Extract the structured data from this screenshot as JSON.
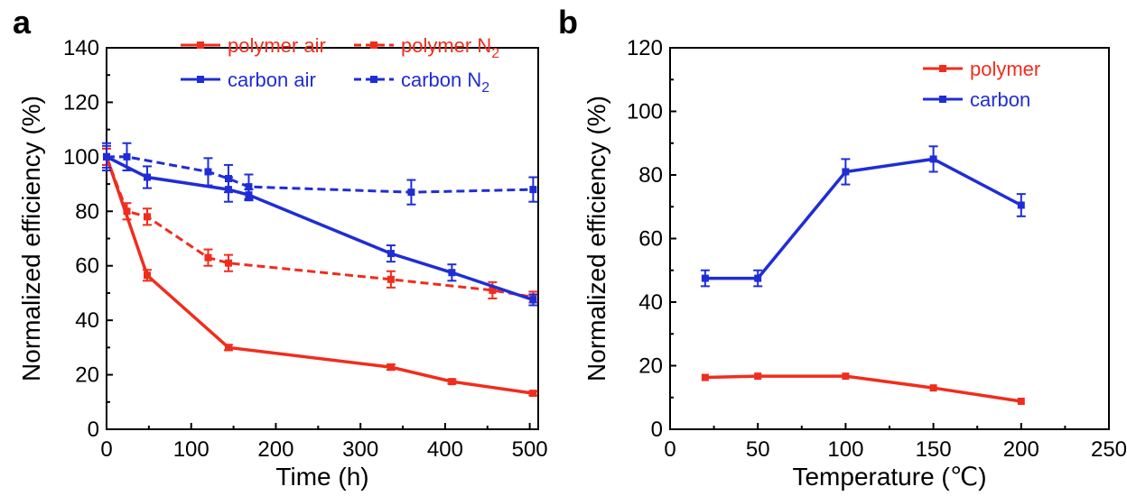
{
  "colors": {
    "polymer": "#f02d1d",
    "carbon": "#1f2dd6",
    "axis": "#000000"
  },
  "chart_data": [
    {
      "panel": "a",
      "type": "line",
      "xlabel": "Time (h)",
      "ylabel": "Normalized efficiency (%)",
      "xlim": [
        0,
        510
      ],
      "ylim": [
        0,
        140
      ],
      "xticks": [
        "0",
        "100",
        "200",
        "300",
        "400",
        "500"
      ],
      "yticks": [
        "0",
        "20",
        "40",
        "60",
        "80",
        "100",
        "120",
        "140"
      ],
      "legend_position": "top-right",
      "series": [
        {
          "name": "polymer air",
          "color_key": "polymer",
          "dashed": false,
          "points": [
            {
              "x": 0,
              "y": 100,
              "err": 3
            },
            {
              "x": 48,
              "y": 56.5,
              "err": 2
            },
            {
              "x": 144,
              "y": 30,
              "err": 1
            },
            {
              "x": 336,
              "y": 22.8,
              "err": 1
            },
            {
              "x": 408,
              "y": 17.5,
              "err": 0.8
            },
            {
              "x": 504,
              "y": 13.2,
              "err": 0.8
            }
          ]
        },
        {
          "name": "polymer N",
          "subscript": "2",
          "color_key": "polymer",
          "dashed": true,
          "points": [
            {
              "x": 0,
              "y": 100,
              "err": 3
            },
            {
              "x": 24,
              "y": 80,
              "err": 3
            },
            {
              "x": 48,
              "y": 78,
              "err": 3
            },
            {
              "x": 120,
              "y": 63,
              "err": 3
            },
            {
              "x": 144,
              "y": 61,
              "err": 3
            },
            {
              "x": 336,
              "y": 55,
              "err": 3
            },
            {
              "x": 456,
              "y": 51,
              "err": 3
            },
            {
              "x": 504,
              "y": 48.5,
              "err": 2
            }
          ]
        },
        {
          "name": "carbon air",
          "color_key": "carbon",
          "dashed": false,
          "points": [
            {
              "x": 0,
              "y": 100,
              "err": 4
            },
            {
              "x": 48,
              "y": 92.5,
              "err": 4
            },
            {
              "x": 144,
              "y": 88,
              "err": 4.5
            },
            {
              "x": 168,
              "y": 86,
              "err": 2
            },
            {
              "x": 336,
              "y": 64.5,
              "err": 3
            },
            {
              "x": 408,
              "y": 57.5,
              "err": 3
            },
            {
              "x": 504,
              "y": 47.5,
              "err": 2
            }
          ]
        },
        {
          "name": "carbon N",
          "subscript": "2",
          "color_key": "carbon",
          "dashed": true,
          "points": [
            {
              "x": 0,
              "y": 100,
              "err": 5
            },
            {
              "x": 24,
              "y": 100,
              "err": 5
            },
            {
              "x": 120,
              "y": 94.5,
              "err": 5
            },
            {
              "x": 144,
              "y": 92,
              "err": 5
            },
            {
              "x": 168,
              "y": 89,
              "err": 4.5
            },
            {
              "x": 360,
              "y": 87,
              "err": 4.5
            },
            {
              "x": 504,
              "y": 88,
              "err": 4.5
            }
          ]
        }
      ]
    },
    {
      "panel": "b",
      "type": "line",
      "xlabel": "Temperature (℃)",
      "ylabel": "Normalized efficiency (%)",
      "xlim": [
        0,
        250
      ],
      "ylim": [
        0,
        120
      ],
      "xticks": [
        "0",
        "50",
        "100",
        "150",
        "200",
        "250"
      ],
      "yticks": [
        "0",
        "20",
        "40",
        "60",
        "80",
        "100",
        "120"
      ],
      "legend_position": "top-right",
      "series": [
        {
          "name": "polymer",
          "color_key": "polymer",
          "dashed": false,
          "points": [
            {
              "x": 20,
              "y": 16.3,
              "err": 0
            },
            {
              "x": 50,
              "y": 16.7,
              "err": 0
            },
            {
              "x": 100,
              "y": 16.7,
              "err": 0
            },
            {
              "x": 150,
              "y": 13,
              "err": 0
            },
            {
              "x": 200,
              "y": 8.8,
              "err": 0
            }
          ]
        },
        {
          "name": "carbon",
          "color_key": "carbon",
          "dashed": false,
          "points": [
            {
              "x": 20,
              "y": 47.5,
              "err": 2.5
            },
            {
              "x": 50,
              "y": 47.5,
              "err": 2.5
            },
            {
              "x": 100,
              "y": 81,
              "err": 4
            },
            {
              "x": 150,
              "y": 85,
              "err": 4
            },
            {
              "x": 200,
              "y": 70.5,
              "err": 3.5
            }
          ]
        }
      ]
    }
  ]
}
